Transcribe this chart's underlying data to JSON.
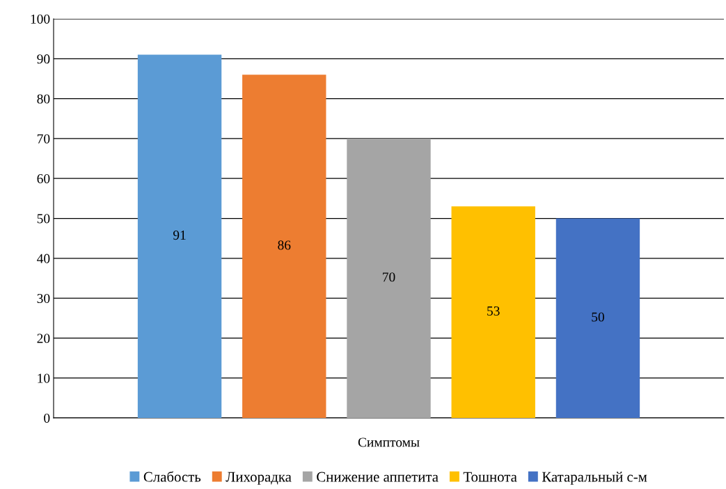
{
  "chart_data": {
    "type": "bar",
    "categories": [
      "Симптомы"
    ],
    "series": [
      {
        "name": "Слабость",
        "color": "#5b9bd5",
        "values": [
          91
        ]
      },
      {
        "name": "Лихорадка",
        "color": "#ed7d31",
        "values": [
          86
        ]
      },
      {
        "name": "Снижение аппетита",
        "color": "#a5a5a5",
        "values": [
          70
        ]
      },
      {
        "name": "Тошнота",
        "color": "#ffc000",
        "values": [
          53
        ]
      },
      {
        "name": "Катаральный с-м",
        "color": "#4472c4",
        "values": [
          50
        ]
      }
    ],
    "ylim": [
      0,
      100
    ],
    "yticks": [
      0,
      10,
      20,
      30,
      40,
      50,
      60,
      70,
      80,
      90,
      100
    ],
    "grid": "y",
    "legend": "bottom",
    "data_labels": true
  }
}
